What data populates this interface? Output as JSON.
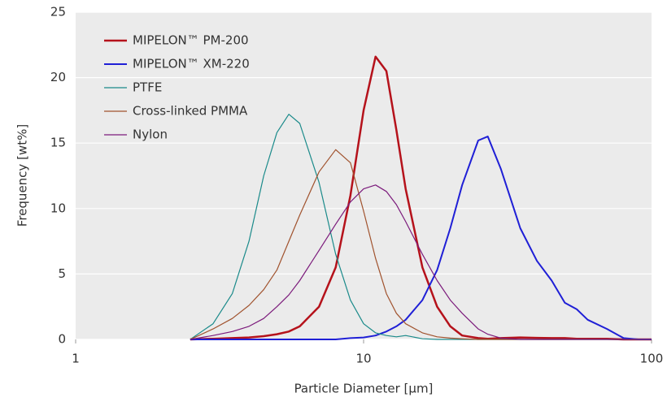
{
  "chart_data": {
    "type": "line",
    "x_label": "Particle Diameter [µm]",
    "y_label": "Frequency [wt%]",
    "x": [
      2.5,
      3,
      3.5,
      4,
      4.5,
      5,
      5.5,
      6,
      7,
      8,
      9,
      10,
      11,
      12,
      13,
      14,
      16,
      18,
      20,
      22,
      25,
      27,
      30,
      35,
      40,
      45,
      50,
      55,
      60,
      70,
      80,
      90,
      100
    ],
    "x_scale": "log",
    "xlim": [
      1,
      100
    ],
    "xticks": [
      1,
      10,
      100
    ],
    "ylim": [
      0,
      25
    ],
    "yticks": [
      0,
      5,
      10,
      15,
      20,
      25
    ],
    "grid": true,
    "legend": "upper left",
    "series": [
      {
        "name": "MIPELON™ PM-200",
        "color": "#b5121b",
        "width": 2.5,
        "values": [
          0,
          0.05,
          0.1,
          0.15,
          0.25,
          0.4,
          0.6,
          1.0,
          2.5,
          5.5,
          11,
          17.5,
          21.6,
          20.5,
          16,
          11.5,
          5.5,
          2.5,
          1,
          0.3,
          0.1,
          0.05,
          0.1,
          0.15,
          0.12,
          0.1,
          0.1,
          0.05,
          0.05,
          0.05,
          0,
          0,
          0
        ]
      },
      {
        "name": "MIPELON™ XM-220",
        "color": "#1f1fd6",
        "width": 2,
        "values": [
          0,
          0,
          0,
          0,
          0,
          0,
          0,
          0,
          0,
          0,
          0.1,
          0.15,
          0.3,
          0.6,
          1,
          1.5,
          3,
          5.3,
          8.5,
          11.8,
          15.2,
          15.5,
          13,
          8.5,
          6,
          4.5,
          2.8,
          2.3,
          1.5,
          0.8,
          0.1,
          0,
          0
        ]
      },
      {
        "name": "PTFE",
        "color": "#1a8a8a",
        "width": 1.2,
        "values": [
          0,
          1.2,
          3.5,
          7.5,
          12.5,
          15.8,
          17.2,
          16.5,
          12,
          6.5,
          3,
          1.2,
          0.5,
          0.3,
          0.2,
          0.3,
          0.05,
          0,
          0,
          0,
          0,
          0,
          0,
          0,
          0,
          0,
          0,
          0,
          0,
          0,
          0,
          0,
          0
        ]
      },
      {
        "name": "Cross-linked PMMA",
        "color": "#a0522d",
        "width": 1.2,
        "values": [
          0,
          0.8,
          1.6,
          2.6,
          3.8,
          5.3,
          7.5,
          9.5,
          12.8,
          14.5,
          13.5,
          9.8,
          6.2,
          3.5,
          2,
          1.2,
          0.5,
          0.2,
          0.1,
          0.05,
          0,
          0,
          0,
          0,
          0,
          0,
          0,
          0,
          0,
          0,
          0,
          0,
          0
        ]
      },
      {
        "name": "Nylon",
        "color": "#7b1a7b",
        "width": 1.2,
        "values": [
          0,
          0.3,
          0.6,
          1.0,
          1.6,
          2.5,
          3.4,
          4.5,
          6.8,
          8.8,
          10.5,
          11.5,
          11.8,
          11.3,
          10.3,
          9,
          6.5,
          4.5,
          3,
          2,
          0.8,
          0.4,
          0.1,
          0,
          0,
          0,
          0,
          0,
          0,
          0,
          0,
          0,
          0
        ]
      }
    ]
  }
}
